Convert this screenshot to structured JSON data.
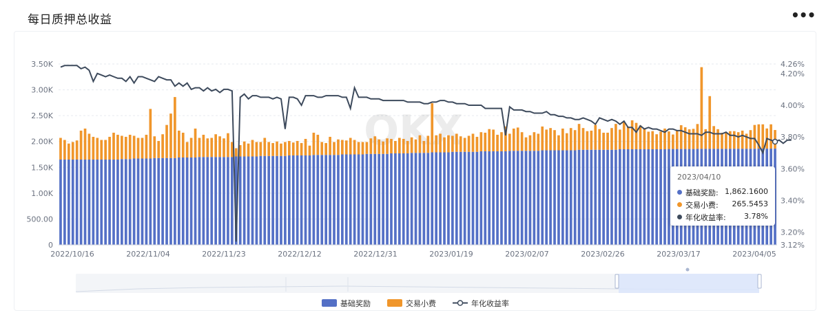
{
  "header": {
    "title": "每日质押总收益",
    "more_label": "•••"
  },
  "tooltip": {
    "date": "2023/04/10",
    "rows": [
      {
        "name": "基础奖励:",
        "value": "1,862.1600",
        "color": "#5470c6"
      },
      {
        "name": "交易小费:",
        "value": "265.5453",
        "color": "#f0962b"
      },
      {
        "name": "年化收益率:",
        "value": "3.78%",
        "color": "#3d4a5c"
      }
    ]
  },
  "legend": [
    {
      "name": "基础奖励",
      "color": "#5470c6"
    },
    {
      "name": "交易小费",
      "color": "#f0962b"
    },
    {
      "name": "年化收益率",
      "color": "#3d4a5c"
    }
  ],
  "chart_data": {
    "type": "bar",
    "stacked": true,
    "x": {
      "start": "2022/10/16",
      "end": "2023/04/10",
      "tick_labels": [
        "2022/10/16",
        "2022/11/04",
        "2022/11/23",
        "2022/12/12",
        "2022/12/31",
        "2023/01/19",
        "2023/02/07",
        "2023/02/26",
        "2023/03/17",
        "2023/04/05"
      ]
    },
    "y_left": {
      "range": [
        0,
        3500
      ],
      "tick_labels": [
        "0",
        "500.00",
        "1.00K",
        "1.50K",
        "2.00K",
        "2.50K",
        "3.00K",
        "3.50K"
      ]
    },
    "y_right": {
      "range": [
        3.12,
        4.26
      ],
      "tick_labels": [
        "3.12%",
        "3.20%",
        "3.40%",
        "3.60%",
        "3.80%",
        "4.00%",
        "4.20%",
        "4.26%"
      ]
    },
    "grid": true,
    "legend_position": "bottom",
    "series": [
      {
        "name": "基础奖励",
        "type": "bar",
        "color": "#5470c6",
        "values": [
          1650,
          1650,
          1650,
          1650,
          1650,
          1650,
          1650,
          1650,
          1650,
          1650,
          1650,
          1650,
          1650,
          1650,
          1650,
          1660,
          1660,
          1660,
          1670,
          1670,
          1670,
          1670,
          1670,
          1680,
          1680,
          1680,
          1680,
          1680,
          1680,
          1690,
          1690,
          1690,
          1690,
          1690,
          1700,
          1700,
          1700,
          1700,
          1700,
          1700,
          1700,
          1700,
          1700,
          1710,
          1710,
          1710,
          1710,
          1710,
          1710,
          1720,
          1720,
          1720,
          1720,
          1720,
          1720,
          1720,
          1730,
          1730,
          1730,
          1730,
          1730,
          1730,
          1740,
          1740,
          1740,
          1740,
          1740,
          1740,
          1740,
          1750,
          1750,
          1750,
          1750,
          1750,
          1750,
          1760,
          1760,
          1760,
          1760,
          1760,
          1760,
          1770,
          1770,
          1770,
          1770,
          1770,
          1780,
          1780,
          1780,
          1780,
          1780,
          1790,
          1790,
          1790,
          1790,
          1790,
          1800,
          1800,
          1800,
          1800,
          1800,
          1800,
          1800,
          1810,
          1810,
          1810,
          1810,
          1810,
          1810,
          1810,
          1820,
          1820,
          1820,
          1820,
          1820,
          1820,
          1820,
          1820,
          1830,
          1830,
          1830,
          1830,
          1830,
          1830,
          1830,
          1830,
          1830,
          1840,
          1840,
          1840,
          1840,
          1840,
          1840,
          1840,
          1840,
          1840,
          1840,
          1850,
          1850,
          1850,
          1850,
          1850,
          1850,
          1850,
          1850,
          1850,
          1850,
          1850,
          1850,
          1855,
          1855,
          1855,
          1855,
          1855,
          1855,
          1855,
          1858,
          1858,
          1858,
          1858,
          1858,
          1858,
          1858,
          1858,
          1860,
          1860,
          1860,
          1860,
          1860,
          1860,
          1860,
          1862,
          1862,
          1862,
          1862,
          1862.16
        ]
      },
      {
        "name": "交易小费",
        "type": "bar",
        "color": "#f0962b",
        "values": [
          420,
          380,
          310,
          340,
          370,
          560,
          600,
          500,
          440,
          420,
          380,
          380,
          440,
          520,
          480,
          450,
          430,
          470,
          440,
          400,
          400,
          460,
          960,
          420,
          330,
          460,
          640,
          860,
          1180,
          520,
          480,
          300,
          380,
          560,
          370,
          430,
          360,
          370,
          440,
          400,
          360,
          460,
          290,
          160,
          220,
          290,
          250,
          320,
          280,
          270,
          350,
          270,
          250,
          280,
          240,
          270,
          280,
          250,
          280,
          240,
          320,
          190,
          430,
          390,
          250,
          230,
          350,
          250,
          300,
          280,
          270,
          320,
          280,
          240,
          240,
          230,
          300,
          340,
          280,
          240,
          300,
          280,
          240,
          300,
          280,
          240,
          300,
          260,
          340,
          230,
          330,
          950,
          330,
          360,
          290,
          330,
          310,
          350,
          300,
          270,
          310,
          350,
          290,
          370,
          360,
          430,
          420,
          320,
          370,
          480,
          330,
          430,
          450,
          360,
          260,
          300,
          360,
          330,
          460,
          400,
          430,
          390,
          290,
          420,
          330,
          430,
          390,
          500,
          420,
          360,
          370,
          480,
          400,
          330,
          330,
          420,
          500,
          380,
          520,
          440,
          560,
          510,
          460,
          400,
          340,
          350,
          290,
          340,
          400,
          340,
          280,
          360,
          460,
          420,
          380,
          390,
          480,
          1580,
          380,
          1020,
          440,
          380,
          310,
          320,
          340,
          340,
          320,
          350,
          290,
          360,
          460,
          470,
          470,
          390,
          470,
          360,
          400,
          470,
          340,
          265.5453
        ]
      },
      {
        "name": "年化收益率",
        "type": "line",
        "color": "#3d4a5c",
        "unit": "%",
        "values": [
          4.24,
          4.25,
          4.25,
          4.25,
          4.25,
          4.23,
          4.24,
          4.22,
          4.15,
          4.2,
          4.19,
          4.18,
          4.19,
          4.18,
          4.17,
          4.17,
          4.15,
          4.18,
          4.14,
          4.18,
          4.18,
          4.17,
          4.16,
          4.15,
          4.18,
          4.17,
          4.16,
          4.16,
          4.12,
          4.14,
          4.12,
          4.14,
          4.1,
          4.11,
          4.11,
          4.09,
          4.11,
          4.09,
          4.1,
          4.08,
          4.1,
          4.1,
          4.09,
          3.14,
          4.05,
          4.07,
          4.04,
          4.06,
          4.06,
          4.05,
          4.05,
          4.05,
          4.04,
          4.05,
          4.04,
          3.85,
          4.05,
          4.05,
          4.04,
          4.0,
          4.06,
          4.06,
          4.06,
          4.05,
          4.05,
          4.06,
          4.06,
          4.06,
          4.06,
          4.05,
          4.05,
          3.98,
          4.11,
          4.05,
          4.05,
          4.05,
          4.04,
          4.04,
          4.04,
          4.03,
          4.03,
          4.03,
          4.03,
          4.03,
          4.03,
          4.02,
          4.02,
          4.02,
          4.02,
          4.01,
          4.01,
          4.02,
          4.02,
          4.03,
          4.03,
          4.02,
          4.02,
          4.01,
          4.01,
          4.01,
          4.0,
          4.0,
          4.0,
          4.0,
          3.98,
          3.98,
          3.98,
          3.98,
          3.98,
          3.81,
          3.99,
          3.97,
          3.97,
          3.97,
          3.96,
          3.96,
          3.95,
          3.95,
          3.95,
          3.96,
          3.94,
          3.94,
          3.93,
          3.93,
          3.92,
          3.92,
          3.91,
          3.91,
          3.92,
          3.91,
          3.9,
          3.88,
          3.92,
          3.91,
          3.9,
          3.91,
          3.9,
          3.88,
          3.9,
          3.86,
          3.86,
          3.83,
          3.87,
          3.85,
          3.86,
          3.85,
          3.85,
          3.84,
          3.83,
          3.85,
          3.85,
          3.84,
          3.84,
          3.83,
          3.82,
          3.82,
          3.82,
          3.81,
          3.83,
          3.83,
          3.82,
          3.82,
          3.82,
          3.83,
          3.81,
          3.81,
          3.8,
          3.81,
          3.8,
          3.79,
          3.79,
          3.75,
          3.7,
          3.79,
          3.78,
          3.77,
          3.78,
          3.76,
          3.78,
          3.78
        ]
      }
    ]
  }
}
